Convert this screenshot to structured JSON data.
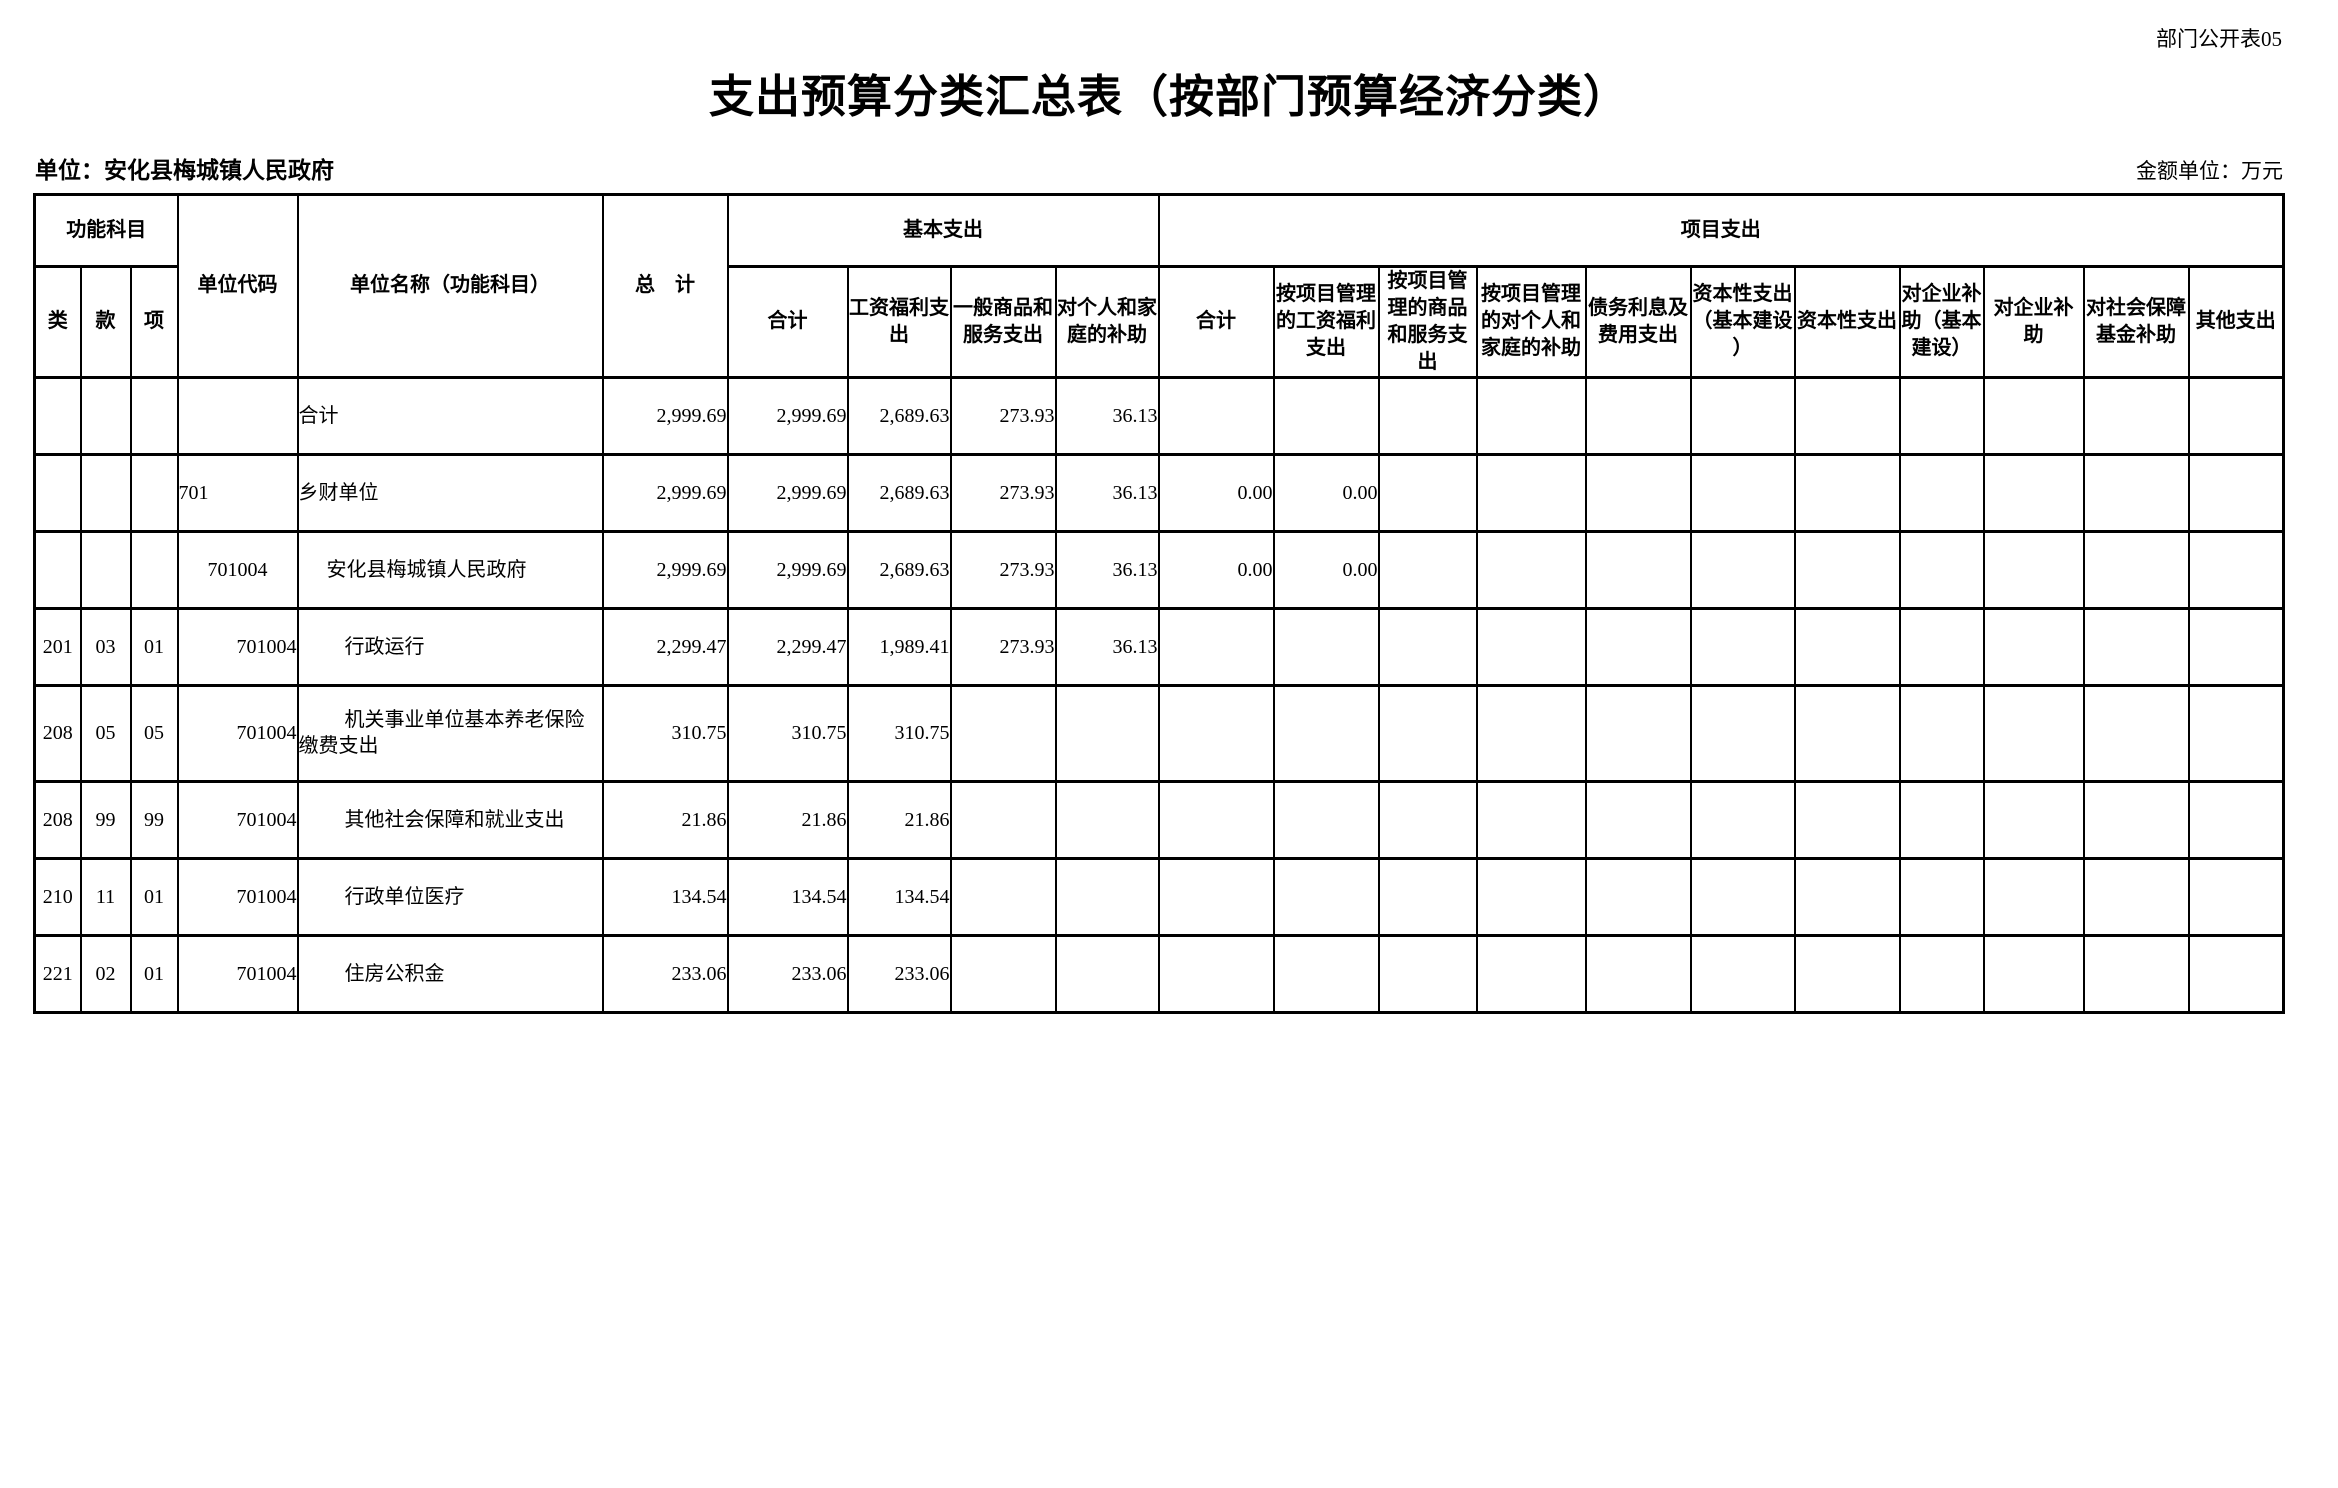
{
  "page": {
    "doc_code": "部门公开表05",
    "title": "支出预算分类汇总表（按部门预算经济分类）",
    "unit_label": "单位：安化县梅城镇人民政府",
    "amount_unit_label": "金额单位：万元"
  },
  "table": {
    "header": {
      "func_subject": "功能科目",
      "cls": "类",
      "section": "款",
      "item": "项",
      "unit_code": "单位代码",
      "unit_name": "单位名称（功能科目）",
      "total": "总　计",
      "basic_group": "基本支出",
      "project_group": "项目支出",
      "basic_cols": [
        "合计",
        "工资福利支出",
        "一般商品和服务支出",
        "对个人和家庭的补助"
      ],
      "project_cols": [
        "合计",
        "按项目管理的工资福利支出",
        "按项目管理的商品和服务支出",
        "按项目管理的对个人和家庭的补助",
        "债务利息及费用支出",
        "资本性支出（基本建设）",
        "资本性支出",
        "对企业补助（基本建设）",
        "对企业补助",
        "对社会保障基金补助",
        "其他支出"
      ]
    },
    "rows": [
      {
        "cls": "",
        "section": "",
        "item": "",
        "code": "",
        "code_align": "left",
        "name": "合计",
        "name_indent": 0,
        "tall": false,
        "values": [
          "2,999.69",
          "2,999.69",
          "2,689.63",
          "273.93",
          "36.13",
          "",
          "",
          "",
          "",
          "",
          "",
          "",
          "",
          "",
          "",
          ""
        ]
      },
      {
        "cls": "",
        "section": "",
        "item": "",
        "code": "701",
        "code_align": "left",
        "name": "乡财单位",
        "name_indent": 0,
        "tall": false,
        "values": [
          "2,999.69",
          "2,999.69",
          "2,689.63",
          "273.93",
          "36.13",
          "0.00",
          "0.00",
          "",
          "",
          "",
          "",
          "",
          "",
          "",
          "",
          ""
        ]
      },
      {
        "cls": "",
        "section": "",
        "item": "",
        "code": "701004",
        "code_align": "center",
        "name": "安化县梅城镇人民政府",
        "name_indent": 1,
        "tall": false,
        "values": [
          "2,999.69",
          "2,999.69",
          "2,689.63",
          "273.93",
          "36.13",
          "0.00",
          "0.00",
          "",
          "",
          "",
          "",
          "",
          "",
          "",
          "",
          ""
        ]
      },
      {
        "cls": "201",
        "section": "03",
        "item": "01",
        "code": "701004",
        "code_align": "right",
        "name": "行政运行",
        "name_indent": 2,
        "tall": false,
        "values": [
          "2,299.47",
          "2,299.47",
          "1,989.41",
          "273.93",
          "36.13",
          "",
          "",
          "",
          "",
          "",
          "",
          "",
          "",
          "",
          "",
          ""
        ]
      },
      {
        "cls": "208",
        "section": "05",
        "item": "05",
        "code": "701004",
        "code_align": "right",
        "name": "机关事业单位基本养老保险缴费支出",
        "name_indent": 2,
        "tall": true,
        "values": [
          "310.75",
          "310.75",
          "310.75",
          "",
          "",
          "",
          "",
          "",
          "",
          "",
          "",
          "",
          "",
          "",
          "",
          ""
        ]
      },
      {
        "cls": "208",
        "section": "99",
        "item": "99",
        "code": "701004",
        "code_align": "right",
        "name": "其他社会保障和就业支出",
        "name_indent": 2,
        "tall": false,
        "values": [
          "21.86",
          "21.86",
          "21.86",
          "",
          "",
          "",
          "",
          "",
          "",
          "",
          "",
          "",
          "",
          "",
          "",
          ""
        ]
      },
      {
        "cls": "210",
        "section": "11",
        "item": "01",
        "code": "701004",
        "code_align": "right",
        "name": "行政单位医疗",
        "name_indent": 2,
        "tall": false,
        "values": [
          "134.54",
          "134.54",
          "134.54",
          "",
          "",
          "",
          "",
          "",
          "",
          "",
          "",
          "",
          "",
          "",
          "",
          ""
        ]
      },
      {
        "cls": "221",
        "section": "02",
        "item": "01",
        "code": "701004",
        "code_align": "right",
        "name": "住房公积金",
        "name_indent": 2,
        "tall": false,
        "values": [
          "233.06",
          "233.06",
          "233.06",
          "",
          "",
          "",
          "",
          "",
          "",
          "",
          "",
          "",
          "",
          "",
          "",
          ""
        ]
      }
    ]
  }
}
